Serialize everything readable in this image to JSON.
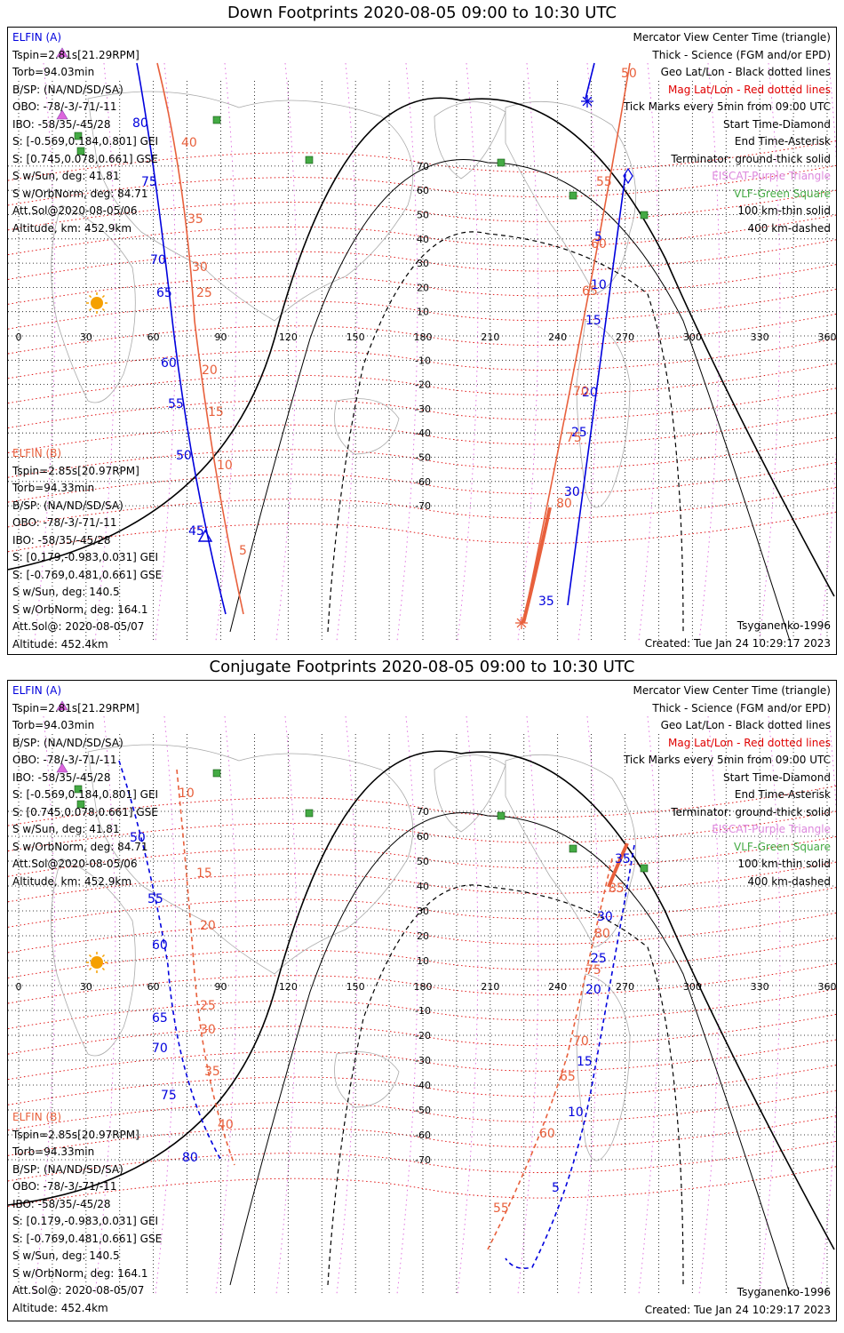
{
  "panels": [
    {
      "title": "Down Footprints 2020-08-05 09:00 to 10:30 UTC",
      "kind": "down",
      "elfin_a": {
        "header": "ELFIN (A)",
        "lines": [
          "Tspin=2.81s[21.29RPM]",
          "Torb=94.03min",
          "B/SP: (NA/ND/SD/SA)",
          "OBO: -78/-3/-71/-11",
          "IBO: -58/35/-45/28",
          "S: [-0.569,0.184,0.801] GEI",
          "S: [0.745,0.078,0.661] GSE",
          "S w/Sun, deg: 41.81",
          "S w/OrbNorm, deg: 84.71",
          "Att.Sol@2020-08-05/06",
          "Altitude, km: 452.9km"
        ]
      },
      "elfin_b": {
        "header": "ELFIN (B)",
        "lines": [
          "Tspin=2.85s[20.97RPM]",
          "Torb=94.33min",
          "B/SP: (NA/ND/SD/SA)",
          "OBO: -78/-3/-71/-11",
          "IBO: -58/35/-45/28",
          "S: [0.179,-0.983,0.031] GEI",
          "S: [-0.769,0.481,0.661] GSE",
          "S w/Sun, deg: 140.5",
          "S w/OrbNorm, deg: 164.1",
          "Att.Sol@: 2020-08-05/07",
          "Altitude: 452.4km"
        ]
      },
      "model": "Tsyganenko-1996",
      "created": "Created: Tue Jan 24 10:29:17 2023"
    },
    {
      "title": "Conjugate Footprints 2020-08-05 09:00 to 10:30 UTC",
      "kind": "conj",
      "elfin_a": {
        "header": "ELFIN (A)",
        "lines": [
          "Tspin=2.81s[21.29RPM]",
          "Torb=94.03min",
          "B/SP: (NA/ND/SD/SA)",
          "OBO: -78/-3/-71/-11",
          "IBO: -58/35/-45/28",
          "S: [-0.569,0.184,0.801] GEI",
          "S: [0.745,0.078,0.661] GSE",
          "S w/Sun, deg: 41.81",
          "S w/OrbNorm, deg: 84.71",
          "Att.Sol@2020-08-05/06",
          "Altitude, km: 452.9km"
        ]
      },
      "elfin_b": {
        "header": "ELFIN (B)",
        "lines": [
          "Tspin=2.85s[20.97RPM]",
          "Torb=94.33min",
          "B/SP: (NA/ND/SD/SA)",
          "OBO: -78/-3/-71/-11",
          "IBO: -58/35/-45/28",
          "S: [0.179,-0.983,0.031] GEI",
          "S: [-0.769,0.481,0.661] GSE",
          "S w/Sun, deg: 140.5",
          "S w/OrbNorm, deg: 164.1",
          "Att.Sol@: 2020-08-05/07",
          "Altitude: 452.4km"
        ]
      },
      "model": "Tsyganenko-1996",
      "created": "Created: Tue Jan 24 10:29:17 2023"
    }
  ],
  "legend": [
    {
      "text": "Mercator View Center Time (triangle)",
      "color": "#000000"
    },
    {
      "text": "Thick - Science (FGM and/or EPD)",
      "color": "#000000"
    },
    {
      "text": "Geo Lat/Lon - Black dotted lines",
      "color": "#000000"
    },
    {
      "text": "Mag Lat/Lon - Red dotted lines",
      "color": "#e00000"
    },
    {
      "text": "Tick Marks every 5min from 09:00 UTC",
      "color": "#000000"
    },
    {
      "text": "Start Time-Diamond",
      "color": "#000000"
    },
    {
      "text": "End Time-Asterisk",
      "color": "#000000"
    },
    {
      "text": "Terminator: ground-thick solid",
      "color": "#000000"
    },
    {
      "text": "EISCAT-Purple Triangle",
      "color": "#dd88dd"
    },
    {
      "text": "VLF-Green Square",
      "color": "#44aa44"
    },
    {
      "text": "100 km-thin solid",
      "color": "#000000"
    },
    {
      "text": "400 km-dashed",
      "color": "#000000"
    }
  ],
  "axes": {
    "lon_ticks": [
      "0",
      "30",
      "60",
      "90",
      "120",
      "150",
      "180",
      "210",
      "240",
      "270",
      "300",
      "330",
      "360"
    ],
    "lat_ticks": [
      "70",
      "60",
      "50",
      "40",
      "30",
      "20",
      "10",
      "-10",
      "-20",
      "-30",
      "-40",
      "-50",
      "-60",
      "-70"
    ]
  },
  "colors": {
    "elfin_a": "#0000dd",
    "elfin_b": "#e8603c",
    "mag_grid": "#dd0000",
    "geo_grid": "#000000",
    "eiscat": "#dd66dd",
    "vlf": "#44aa44",
    "sun": "#f5a000"
  },
  "tracks": {
    "down": {
      "a_track_labels": [
        "80",
        "75",
        "70",
        "65",
        "60",
        "55",
        "50",
        "45"
      ],
      "b_track_labels": [
        "40",
        "35",
        "30",
        "25",
        "20",
        "15",
        "10",
        "5"
      ],
      "a_east_labels": [
        "5",
        "10",
        "15",
        "20",
        "25",
        "30",
        "35"
      ],
      "b_east_labels": [
        "50",
        "55",
        "60",
        "65",
        "70",
        "75",
        "80",
        "85"
      ]
    },
    "conj": {
      "a_track_labels": [
        "50",
        "55",
        "60",
        "65",
        "70",
        "75",
        "80"
      ],
      "b_track_labels": [
        "10",
        "15",
        "20",
        "25",
        "30",
        "35",
        "40"
      ],
      "a_east_labels": [
        "35",
        "30",
        "25",
        "20",
        "15",
        "10",
        "5"
      ],
      "b_east_labels": [
        "85",
        "80",
        "75",
        "70",
        "65",
        "60",
        "55"
      ]
    }
  }
}
